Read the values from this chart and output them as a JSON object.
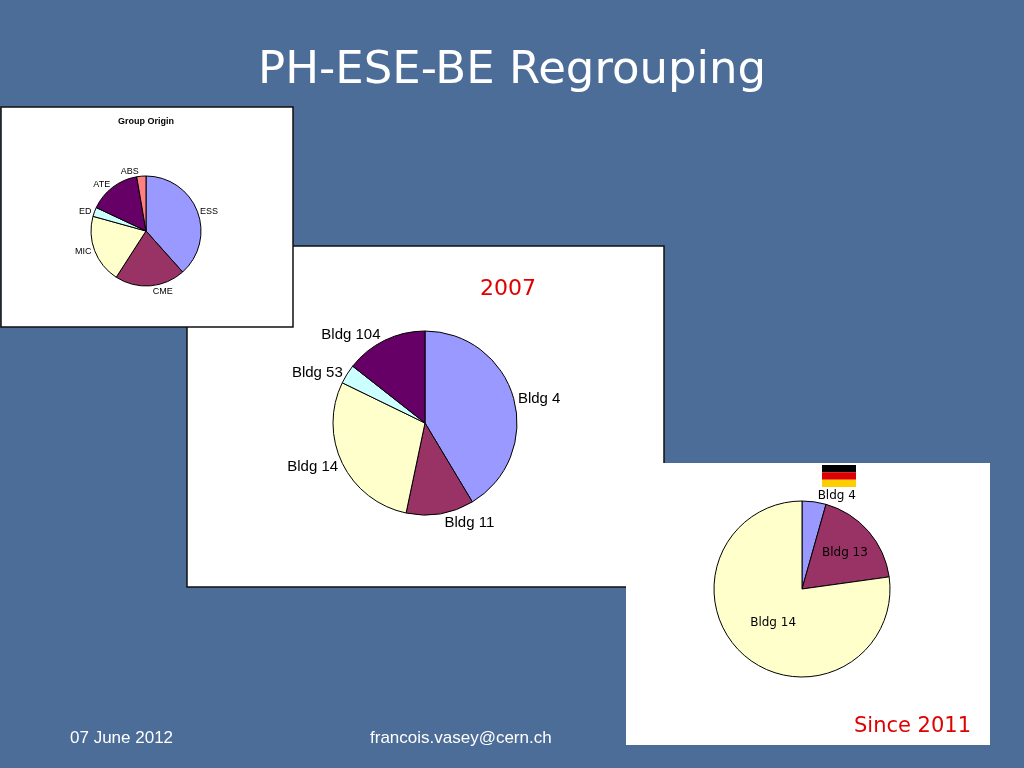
{
  "chart_data": [
    {
      "type": "other",
      "title": "PH-ESE-BE Regrouping",
      "annotations": [
        "07 June 2012",
        "francois.vasey@cern.ch"
      ]
    },
    {
      "type": "pie",
      "title": "Group Origin",
      "categories": [
        "ESS",
        "CME",
        "MIC",
        "ED",
        "ATE",
        "ABS"
      ],
      "values": [
        38.4,
        20.7,
        20.2,
        2.7,
        15.3,
        2.7
      ],
      "colors": [
        "#9999ff",
        "#993366",
        "#ffffcc",
        "#ccffff",
        "#660066",
        "#ff8080"
      ]
    },
    {
      "type": "pie",
      "title": "2007",
      "categories": [
        "Bldg 4",
        "Bldg 11",
        "Bldg 14",
        "Bldg 53",
        "Bldg 104"
      ],
      "values": [
        41.4,
        11.9,
        28.9,
        3.4,
        14.4
      ],
      "colors": [
        "#9999ff",
        "#993366",
        "#ffffcc",
        "#ccffff",
        "#660066"
      ]
    },
    {
      "type": "pie",
      "title": "Since 2011",
      "categories": [
        "Bldg 4",
        "Bldg 13",
        "Bldg 14"
      ],
      "values": [
        4.4,
        18.4,
        77.2
      ],
      "colors": [
        "#9999ff",
        "#993366",
        "#ffffcc"
      ]
    }
  ]
}
